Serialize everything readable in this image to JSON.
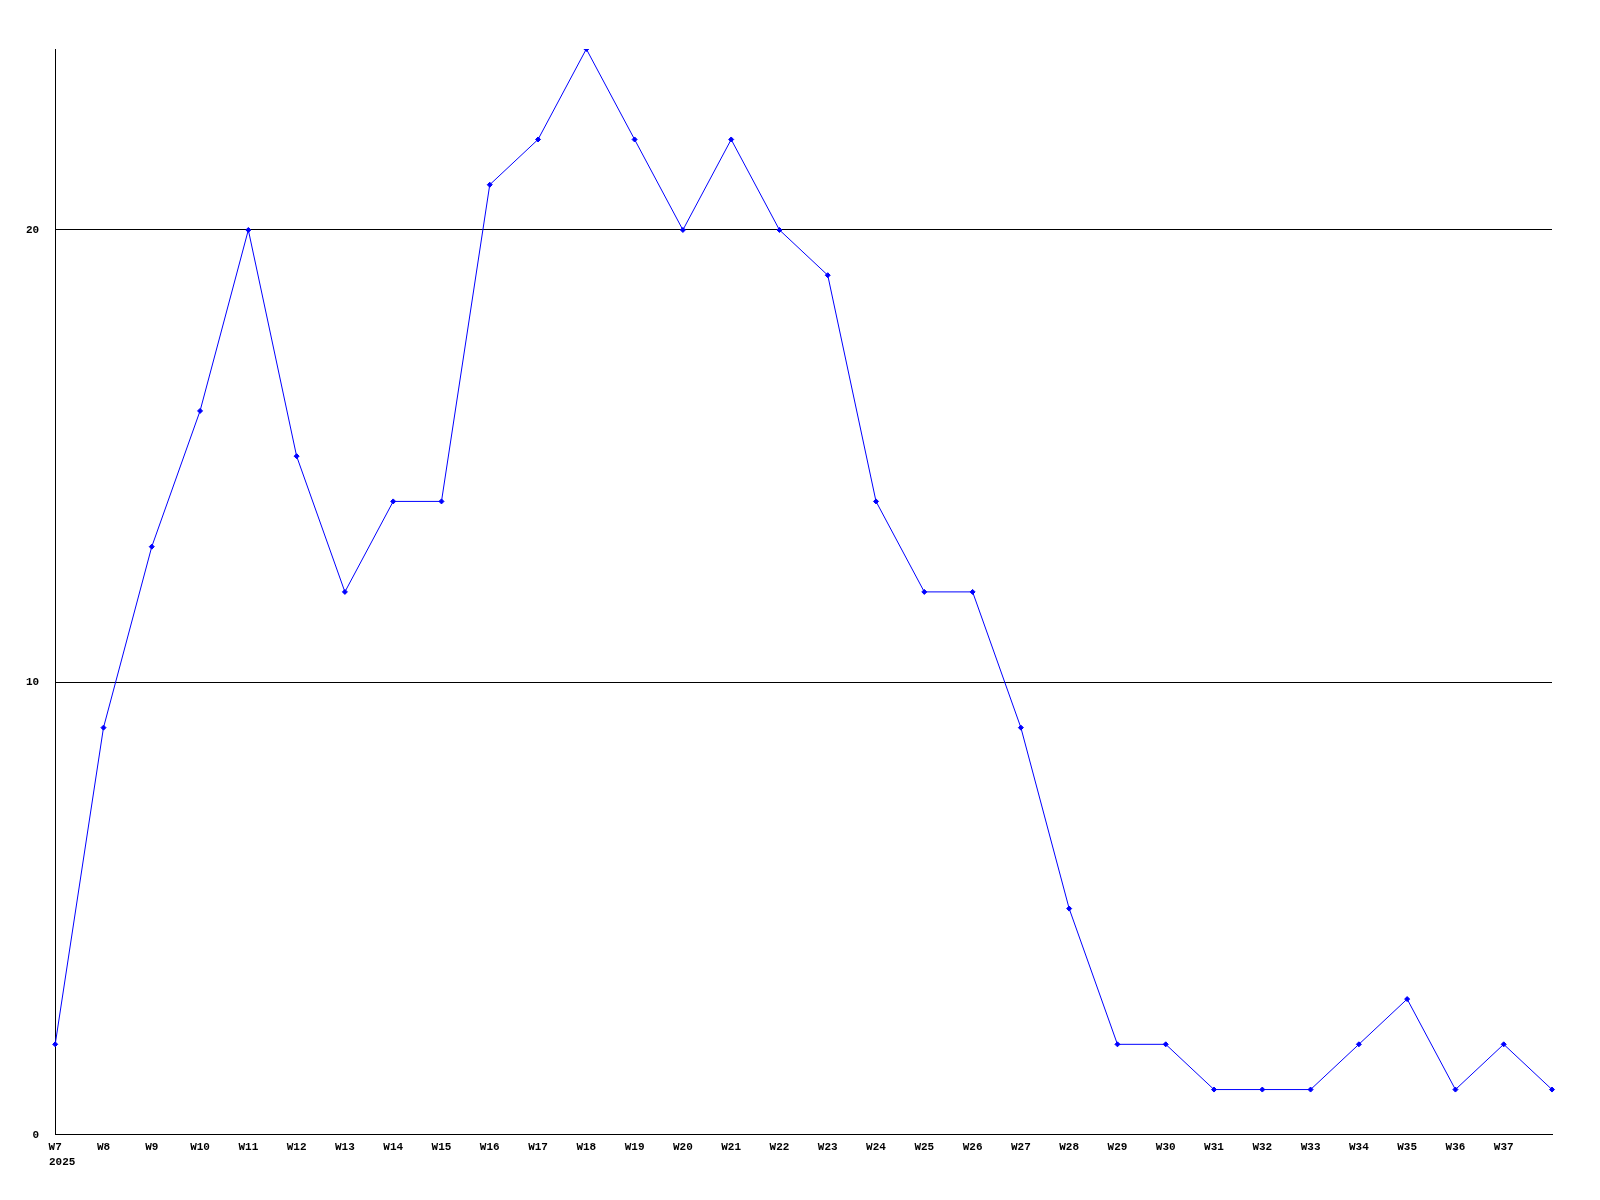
{
  "chart_data": {
    "type": "line",
    "categories": [
      "W7",
      "W8",
      "W9",
      "W10",
      "W11",
      "W12",
      "W13",
      "W14",
      "W15",
      "W16",
      "W17",
      "W18",
      "W19",
      "W20",
      "W21",
      "W22",
      "W23",
      "W24",
      "W25",
      "W26",
      "W27",
      "W28",
      "W29",
      "W30",
      "W31",
      "W32",
      "W33",
      "W34",
      "W35",
      "W36",
      "W37",
      null
    ],
    "series": [
      {
        "color": "#0000ff",
        "values": [
          2,
          9,
          13,
          16,
          20,
          15,
          12,
          14,
          14,
          21,
          22,
          24,
          22,
          20,
          22,
          20,
          19,
          14,
          12,
          12,
          9,
          5,
          2,
          2,
          1,
          1,
          1,
          2,
          3,
          1,
          2,
          1
        ]
      }
    ],
    "ylim": [
      0,
      24
    ],
    "yticks": [
      0,
      10,
      20
    ],
    "grid": "y",
    "legend": false,
    "marker": "diamond",
    "line_style": "solid",
    "annotations": [
      "2025"
    ]
  }
}
